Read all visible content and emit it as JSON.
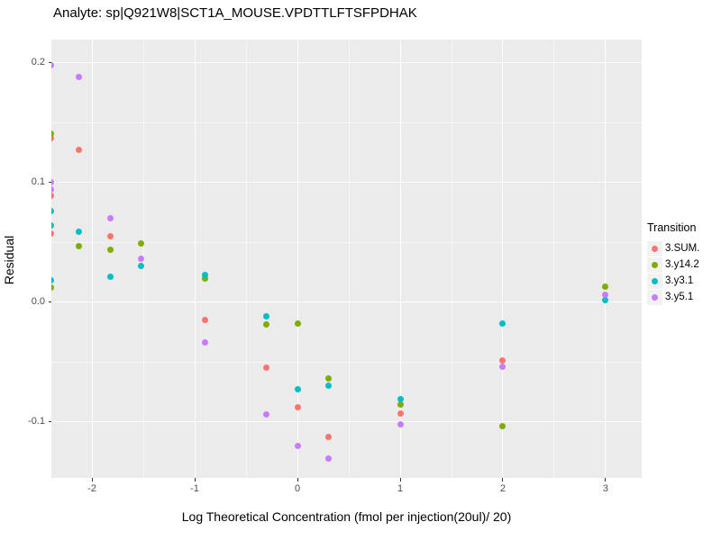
{
  "title": "Analyte: sp|Q921W8|SCT1A_MOUSE.VPDTTLFTSFPDHAK",
  "chart_data": {
    "type": "scatter",
    "title": "Analyte: sp|Q921W8|SCT1A_MOUSE.VPDTTLFTSFPDHAK",
    "xlabel": "Log Theoretical Concentration (fmol per injection(20ul)/ 20)",
    "ylabel": "Residual",
    "legend_title": "Transition",
    "legend_position": "right",
    "panel_background": "#EBEBEB",
    "grid": "white major and minor gridlines",
    "xlim": [
      -2.395,
      3.351
    ],
    "ylim": [
      -0.147,
      0.2195
    ],
    "x_major_ticks": [
      -2,
      -1,
      0,
      1,
      2,
      3
    ],
    "x_tick_labels": [
      "-2",
      "-1",
      "0",
      "1",
      "2",
      "3"
    ],
    "x_minor_ticks": [
      -1.5,
      -0.5,
      0.5,
      1.5,
      2.5
    ],
    "y_major_ticks": [
      0.2,
      0.1,
      0.0,
      -0.1
    ],
    "y_tick_labels": [
      "0.2",
      "0.1",
      "0.0",
      "-0.1"
    ],
    "y_minor_ticks": [
      0.15,
      0.05,
      -0.05
    ],
    "series": [
      {
        "name": "3.SUM.",
        "color": "#F8766D",
        "points": [
          [
            -2.398,
            0.137
          ],
          [
            -2.398,
            0.089
          ],
          [
            -2.398,
            0.057
          ],
          [
            -2.125,
            0.127
          ],
          [
            -1.824,
            0.055
          ],
          [
            -0.903,
            -0.015
          ],
          [
            -0.301,
            -0.055
          ],
          [
            0.0,
            -0.088
          ],
          [
            0.301,
            -0.113
          ],
          [
            1.0,
            -0.093
          ],
          [
            2.0,
            -0.049
          ]
        ]
      },
      {
        "name": "3.y14.2",
        "color": "#7CAE00",
        "points": [
          [
            -2.398,
            0.141
          ],
          [
            -2.398,
            0.012
          ],
          [
            -2.125,
            0.047
          ],
          [
            -1.824,
            0.044
          ],
          [
            -1.523,
            0.049
          ],
          [
            -0.903,
            0.02
          ],
          [
            -0.301,
            -0.019
          ],
          [
            0.0,
            -0.018
          ],
          [
            0.301,
            -0.064
          ],
          [
            1.0,
            -0.086
          ],
          [
            2.0,
            -0.104
          ],
          [
            3.0,
            0.013
          ]
        ]
      },
      {
        "name": "3.y3.1",
        "color": "#00BFC4",
        "points": [
          [
            -2.398,
            0.076
          ],
          [
            -2.398,
            0.064
          ],
          [
            -2.398,
            0.018
          ],
          [
            -2.125,
            0.059
          ],
          [
            -1.824,
            0.021
          ],
          [
            -1.523,
            0.03
          ],
          [
            -0.903,
            0.023
          ],
          [
            -0.301,
            -0.012
          ],
          [
            0.0,
            -0.073
          ],
          [
            0.301,
            -0.07
          ],
          [
            1.0,
            -0.081
          ],
          [
            2.0,
            -0.018
          ],
          [
            3.0,
            0.002
          ]
        ]
      },
      {
        "name": "3.y5.1",
        "color": "#C77CFF",
        "points": [
          [
            -2.398,
            0.198
          ],
          [
            -2.398,
            0.1
          ],
          [
            -2.398,
            0.094
          ],
          [
            -2.125,
            0.188
          ],
          [
            -1.824,
            0.07
          ],
          [
            -1.523,
            0.036
          ],
          [
            -0.903,
            -0.034
          ],
          [
            -0.301,
            -0.094
          ],
          [
            0.0,
            -0.12
          ],
          [
            0.301,
            -0.131
          ],
          [
            1.0,
            -0.102
          ],
          [
            2.0,
            -0.054
          ],
          [
            3.0,
            0.006
          ]
        ]
      }
    ]
  }
}
